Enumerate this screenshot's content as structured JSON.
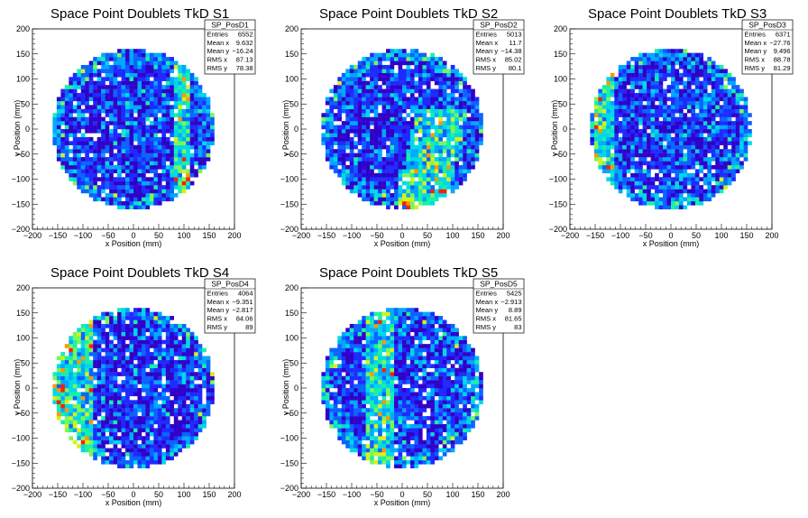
{
  "chart_data": [
    {
      "type": "heatmap",
      "title": "Space Point Doublets TkD S1",
      "xlabel": "x Position (mm)",
      "ylabel": "y Position (mm)",
      "xlim": [
        -200,
        200
      ],
      "ylim": [
        -200,
        200
      ],
      "xticks": [
        "−200",
        "−150",
        "−100",
        "−50",
        "0",
        "50",
        "100",
        "150",
        "200"
      ],
      "yticks": [
        "−200",
        "−150",
        "−100",
        "−50",
        "0",
        "50",
        "100",
        "150",
        "200"
      ],
      "palette": [
        "#3000c8",
        "#1f2aff",
        "#0a64ff",
        "#00a8ff",
        "#00d8e8",
        "#18f0a8",
        "#78f858",
        "#d8f018",
        "#ff9800",
        "#ff2000"
      ],
      "hot_band": {
        "axis": "x",
        "from": 80,
        "to": 110
      },
      "stats": {
        "name": "SP_PosD1",
        "rows": [
          {
            "label": "Entries",
            "value": "6552"
          },
          {
            "label": "Mean x",
            "value": "9.632"
          },
          {
            "label": "Mean y",
            "value": "−16.24"
          },
          {
            "label": "RMS x",
            "value": "87.13"
          },
          {
            "label": "RMS y",
            "value": "78.38"
          }
        ]
      }
    },
    {
      "type": "heatmap",
      "title": "Space Point Doublets TkD S2",
      "xlabel": "x Position (mm)",
      "ylabel": "y Position (mm)",
      "xlim": [
        -200,
        200
      ],
      "ylim": [
        -200,
        200
      ],
      "xticks": [
        "−200",
        "−150",
        "−100",
        "−50",
        "0",
        "50",
        "100",
        "150",
        "200"
      ],
      "yticks": [
        "−200",
        "−150",
        "−100",
        "−50",
        "0",
        "50",
        "100",
        "150",
        "200"
      ],
      "palette": [
        "#3000c8",
        "#1f2aff",
        "#0a64ff",
        "#00a8ff",
        "#00d8e8",
        "#18f0a8",
        "#78f858",
        "#d8f018",
        "#ff9800",
        "#ff2000"
      ],
      "hot_band": {
        "axis": "diag",
        "from": 60,
        "to": 160
      },
      "stats": {
        "name": "SP_PosD2",
        "rows": [
          {
            "label": "Entries",
            "value": "5013"
          },
          {
            "label": "Mean x",
            "value": "11.7"
          },
          {
            "label": "Mean y",
            "value": "−14.38"
          },
          {
            "label": "RMS x",
            "value": "85.02"
          },
          {
            "label": "RMS y",
            "value": "80.1"
          }
        ]
      }
    },
    {
      "type": "heatmap",
      "title": "Space Point Doublets TkD S3",
      "xlabel": "x Position (mm)",
      "ylabel": "y Position (mm)",
      "xlim": [
        -200,
        200
      ],
      "ylim": [
        -200,
        200
      ],
      "xticks": [
        "−200",
        "−150",
        "−100",
        "−50",
        "0",
        "50",
        "100",
        "150",
        "200"
      ],
      "yticks": [
        "−200",
        "−150",
        "−100",
        "−50",
        "0",
        "50",
        "100",
        "150",
        "200"
      ],
      "palette": [
        "#3000c8",
        "#1f2aff",
        "#0a64ff",
        "#00a8ff",
        "#00d8e8",
        "#18f0a8",
        "#78f858",
        "#d8f018",
        "#ff9800",
        "#ff2000"
      ],
      "hot_band": {
        "axis": "x",
        "from": -155,
        "to": -110
      },
      "stats": {
        "name": "SP_PosD3",
        "rows": [
          {
            "label": "Entries",
            "value": "6371"
          },
          {
            "label": "Mean x",
            "value": "−27.76"
          },
          {
            "label": "Mean y",
            "value": "9.496"
          },
          {
            "label": "RMS x",
            "value": "88.78"
          },
          {
            "label": "RMS y",
            "value": "81.29"
          }
        ]
      }
    },
    {
      "type": "heatmap",
      "title": "Space Point Doublets TkD S4",
      "xlabel": "x Position (mm)",
      "ylabel": "y Position (mm)",
      "xlim": [
        -200,
        200
      ],
      "ylim": [
        -200,
        200
      ],
      "xticks": [
        "−200",
        "−150",
        "−100",
        "−50",
        "0",
        "50",
        "100",
        "150",
        "200"
      ],
      "yticks": [
        "−200",
        "−150",
        "−100",
        "−50",
        "0",
        "50",
        "100",
        "150",
        "200"
      ],
      "palette": [
        "#3000c8",
        "#1f2aff",
        "#0a64ff",
        "#00a8ff",
        "#00d8e8",
        "#18f0a8",
        "#78f858",
        "#d8f018",
        "#ff9800",
        "#ff2000"
      ],
      "hot_band": {
        "axis": "x",
        "from": -160,
        "to": -80
      },
      "stats": {
        "name": "SP_PosD4",
        "rows": [
          {
            "label": "Entries",
            "value": "4064"
          },
          {
            "label": "Mean x",
            "value": "−9.351"
          },
          {
            "label": "Mean y",
            "value": "−2.817"
          },
          {
            "label": "RMS x",
            "value": "84.06"
          },
          {
            "label": "RMS y",
            "value": "89"
          }
        ]
      }
    },
    {
      "type": "heatmap",
      "title": "Space Point Doublets TkD S5",
      "xlabel": "x Position (mm)",
      "ylabel": "y Position (mm)",
      "xlim": [
        -200,
        200
      ],
      "ylim": [
        -200,
        200
      ],
      "xticks": [
        "−200",
        "−150",
        "−100",
        "−50",
        "0",
        "50",
        "100",
        "150",
        "200"
      ],
      "yticks": [
        "−200",
        "−150",
        "−100",
        "−50",
        "0",
        "50",
        "100",
        "150",
        "200"
      ],
      "palette": [
        "#3000c8",
        "#1f2aff",
        "#0a64ff",
        "#00a8ff",
        "#00d8e8",
        "#18f0a8",
        "#78f858",
        "#d8f018",
        "#ff9800",
        "#ff2000"
      ],
      "hot_band": {
        "axis": "x",
        "from": -70,
        "to": -20
      },
      "stats": {
        "name": "SP_PosD5",
        "rows": [
          {
            "label": "Entries",
            "value": "5425"
          },
          {
            "label": "Mean x",
            "value": "−2.913"
          },
          {
            "label": "Mean y",
            "value": "8.89"
          },
          {
            "label": "RMS x",
            "value": "81.65"
          },
          {
            "label": "RMS y",
            "value": "83"
          }
        ]
      }
    }
  ]
}
